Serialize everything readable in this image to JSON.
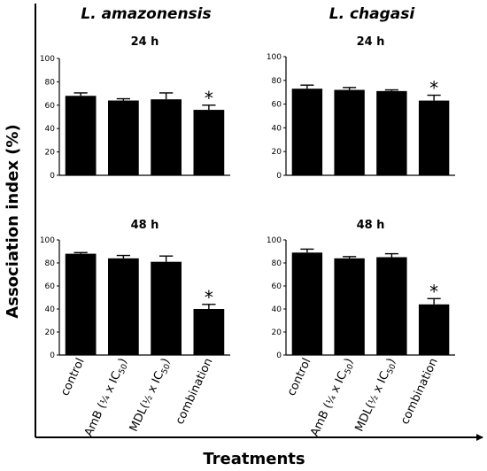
{
  "figure": {
    "ylabel": "Association index (%)",
    "xlabel": "Treatments",
    "columns": [
      "L. amazonensis",
      "L. chagasi"
    ]
  },
  "chart_data": [
    {
      "type": "bar",
      "title": "24 h",
      "species": "L. amazonensis",
      "categories": [
        "control",
        "AmB (¼ x IC50)",
        "MDL(½ x IC50)",
        "combination"
      ],
      "values": [
        68,
        64,
        65,
        56
      ],
      "errors": [
        2.5,
        1.5,
        5.5,
        4
      ],
      "significant": [
        false,
        false,
        false,
        true
      ],
      "ylim": [
        0,
        100
      ],
      "yticks": [
        0,
        20,
        40,
        60,
        80,
        100
      ]
    },
    {
      "type": "bar",
      "title": "24 h",
      "species": "L. chagasi",
      "categories": [
        "control",
        "AmB (¼ x IC50)",
        "MDL(½ x IC50)",
        "combination"
      ],
      "values": [
        73,
        72,
        71,
        63
      ],
      "errors": [
        3,
        2,
        1,
        4.5
      ],
      "significant": [
        false,
        false,
        false,
        true
      ],
      "ylim": [
        0,
        100
      ],
      "yticks": [
        0,
        20,
        40,
        60,
        80,
        100
      ]
    },
    {
      "type": "bar",
      "title": "48 h",
      "species": "L. amazonensis",
      "categories": [
        "control",
        "AmB (¼ x IC50)",
        "MDL(½ x IC50)",
        "combination"
      ],
      "values": [
        88,
        84,
        81,
        40
      ],
      "errors": [
        1,
        2.5,
        5,
        4
      ],
      "significant": [
        false,
        false,
        false,
        true
      ],
      "ylim": [
        0,
        100
      ],
      "yticks": [
        0,
        20,
        40,
        60,
        80,
        100
      ]
    },
    {
      "type": "bar",
      "title": "48 h",
      "species": "L. chagasi",
      "categories": [
        "control",
        "AmB (¼ x IC50)",
        "MDL(½ x IC50)",
        "combination"
      ],
      "values": [
        89,
        84,
        85,
        44
      ],
      "errors": [
        3,
        1.5,
        3,
        5
      ],
      "significant": [
        false,
        false,
        false,
        true
      ],
      "ylim": [
        0,
        100
      ],
      "yticks": [
        0,
        20,
        40,
        60,
        80,
        100
      ]
    }
  ],
  "category_labels": [
    {
      "name": "control",
      "main": "control",
      "parts": []
    },
    {
      "name": "amb",
      "main": "AmB (",
      "parts": [
        [
          "¼",
          "frac"
        ],
        [
          " x IC",
          ""
        ],
        [
          "50",
          "sub"
        ],
        [
          ")",
          ""
        ]
      ]
    },
    {
      "name": "mdl",
      "main": "MDL(",
      "parts": [
        [
          "½",
          "frac"
        ],
        [
          " x IC",
          ""
        ],
        [
          "50",
          "sub"
        ],
        [
          ")",
          ""
        ]
      ]
    },
    {
      "name": "combination",
      "main": "combination",
      "parts": []
    }
  ],
  "significance_marker": "*"
}
